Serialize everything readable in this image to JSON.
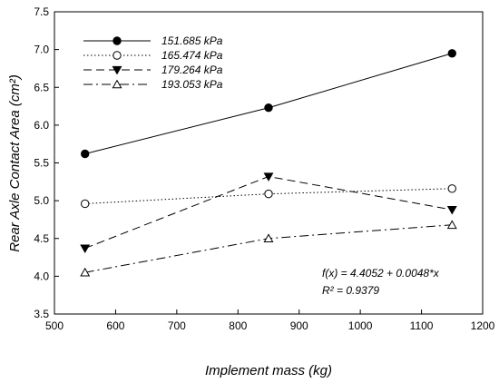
{
  "chart_data": {
    "type": "line",
    "xlabel": "Implement mass (kg)",
    "ylabel": "Rear Axle Contact Area (cm²)",
    "xlim": [
      500,
      1200
    ],
    "ylim": [
      3.5,
      7.5
    ],
    "xticks": [
      "500",
      "600",
      "700",
      "800",
      "900",
      "1000",
      "1100",
      "1200"
    ],
    "yticks": [
      "3.5",
      "4.0",
      "4.5",
      "5.0",
      "5.5",
      "6.0",
      "6.5",
      "7.0",
      "7.5"
    ],
    "grid": false,
    "legend_position": "top-left",
    "x": [
      550,
      850,
      1150
    ],
    "series": [
      {
        "name": "151.685 kPa",
        "values": [
          5.62,
          6.23,
          6.95
        ],
        "marker": "filled-circle",
        "line": "solid"
      },
      {
        "name": "165.474 kPa",
        "values": [
          4.96,
          5.09,
          5.16
        ],
        "marker": "open-circle",
        "line": "dotted"
      },
      {
        "name": "179.264 kPa",
        "values": [
          4.37,
          5.32,
          4.88
        ],
        "marker": "filled-triangle-down",
        "line": "dashed"
      },
      {
        "name": "193.053 kPa",
        "values": [
          4.05,
          4.5,
          4.68
        ],
        "marker": "open-triangle-up",
        "line": "dash-dot"
      }
    ],
    "annotations": [
      "f(x) = 4.4052 + 0.0048*x",
      "R² =   0.9379"
    ]
  }
}
